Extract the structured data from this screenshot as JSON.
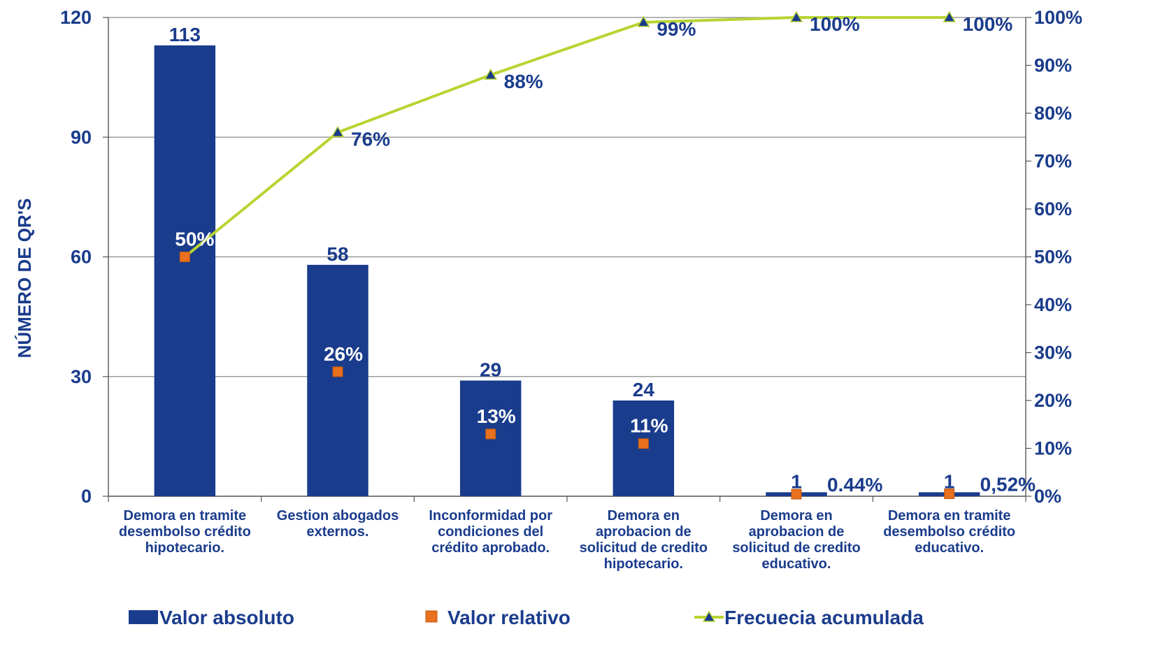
{
  "chart_data": {
    "type": "bar",
    "title": "",
    "ylabel": "NÚMERO DE QR'S",
    "ylim": [
      0,
      120
    ],
    "y_ticks": [
      "0",
      "30",
      "60",
      "90",
      "120"
    ],
    "y2lim": [
      0,
      100
    ],
    "y2_ticks": [
      "0%",
      "10%",
      "20%",
      "30%",
      "40%",
      "50%",
      "60%",
      "70%",
      "80%",
      "90%",
      "100%"
    ],
    "grid": true,
    "legend_position": "bottom",
    "categories": [
      [
        "Demora en tramite",
        "desembolso crédito",
        "hipotecario."
      ],
      [
        "Gestion abogados",
        "externos."
      ],
      [
        "Inconformidad por",
        "condiciones del",
        "crédito aprobado."
      ],
      [
        "Demora en",
        "aprobacion de",
        "solicitud de credito",
        "hipotecario."
      ],
      [
        "Demora en",
        "aprobacion de",
        "solicitud de credito",
        "educativo."
      ],
      [
        "Demora en tramite",
        "desembolso crédito",
        "educativo."
      ]
    ],
    "series": [
      {
        "name": "Valor absoluto",
        "type": "bar",
        "axis": "left",
        "color": "#1a3c8c",
        "values": [
          113,
          58,
          29,
          24,
          1,
          1
        ],
        "labels": [
          "113",
          "58",
          "29",
          "24",
          "1",
          "1"
        ]
      },
      {
        "name": "Valor relativo",
        "type": "scatter",
        "axis": "right",
        "color": "#e8701e",
        "values": [
          50,
          26,
          13,
          11,
          0.44,
          0.52
        ],
        "labels": [
          "50%",
          "26%",
          "13%",
          "11%",
          "0.44%",
          "0,52%"
        ]
      },
      {
        "name": "Frecuecia acumulada",
        "type": "line",
        "axis": "right",
        "color": "#b8d432",
        "marker_color": "#1a3c8c",
        "values": [
          50,
          76,
          88,
          99,
          100,
          100
        ],
        "labels": [
          "50%",
          "76%",
          "88%",
          "99%",
          "100%",
          "100%"
        ]
      }
    ]
  }
}
